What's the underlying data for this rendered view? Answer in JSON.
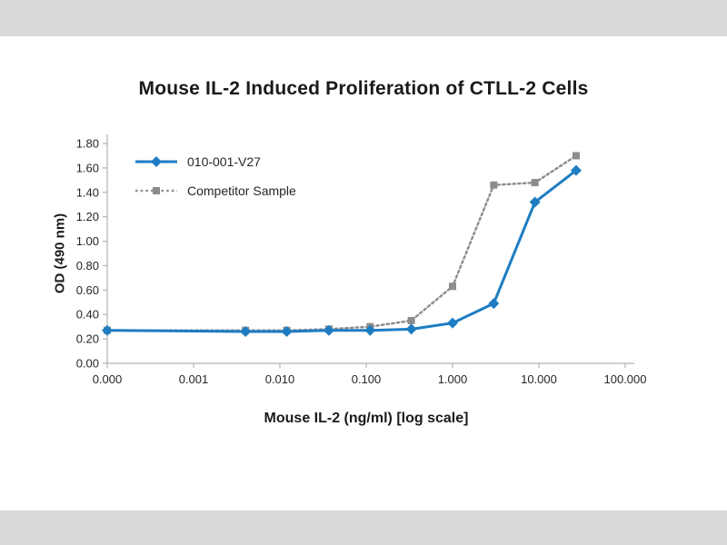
{
  "page": {
    "band_color": "#d9d9d9",
    "background_color": "#ffffff"
  },
  "chart_data": {
    "type": "line",
    "title": "Mouse IL-2 Induced Proliferation of CTLL-2 Cells",
    "xlabel": "Mouse IL-2 (ng/ml) [log scale]",
    "ylabel": "OD (490 nm)",
    "x_scale": "log",
    "grid": false,
    "legend_position": "top-left",
    "ylim": [
      0,
      1.8
    ],
    "y_ticks": [
      "0.00",
      "0.20",
      "0.40",
      "0.60",
      "0.80",
      "1.00",
      "1.20",
      "1.40",
      "1.60",
      "1.80"
    ],
    "x_ticks": [
      "0.000",
      "0.001",
      "0.010",
      "0.100",
      "1.000",
      "10.000",
      "100.000"
    ],
    "x": [
      0,
      0.004,
      0.012,
      0.037,
      0.111,
      0.333,
      1,
      3,
      9,
      27
    ],
    "series": [
      {
        "name": "010-001-V27",
        "color": "#1d7dc2",
        "marker": "diamond",
        "line": "solid",
        "values": [
          0.27,
          0.26,
          0.26,
          0.27,
          0.27,
          0.28,
          0.33,
          0.49,
          1.32,
          1.58
        ]
      },
      {
        "name": "Competitor Sample",
        "color": "#8c8c8c",
        "marker": "square",
        "line": "dotted",
        "values": [
          0.27,
          0.27,
          0.27,
          0.28,
          0.3,
          0.35,
          0.63,
          1.46,
          1.48,
          1.7
        ]
      }
    ],
    "axis_color": "#b3b3b3",
    "tick_text_color": "#262626"
  }
}
